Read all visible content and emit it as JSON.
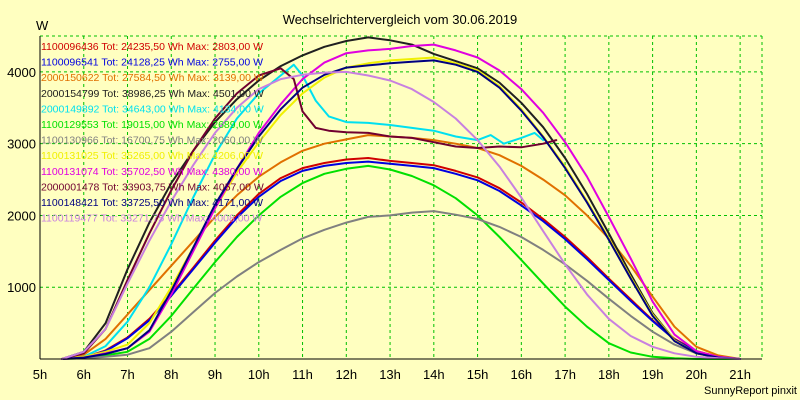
{
  "chart_data": {
    "type": "line",
    "title": "Wechselrichtervergleich vom 30.06.2019",
    "ylabel": "W",
    "xlabel": "",
    "footer": "SunnyReport pinxit",
    "xlim": [
      5,
      21.5
    ],
    "ylim": [
      0,
      4500
    ],
    "grid": true,
    "x_ticks": [
      {
        "value": 5,
        "label": "5h"
      },
      {
        "value": 6,
        "label": "6h"
      },
      {
        "value": 7,
        "label": "7h"
      },
      {
        "value": 8,
        "label": "8h"
      },
      {
        "value": 9,
        "label": "9h"
      },
      {
        "value": 10,
        "label": "10h"
      },
      {
        "value": 11,
        "label": "11h"
      },
      {
        "value": 12,
        "label": "12h"
      },
      {
        "value": 13,
        "label": "13h"
      },
      {
        "value": 14,
        "label": "14h"
      },
      {
        "value": 15,
        "label": "15h"
      },
      {
        "value": 16,
        "label": "16h"
      },
      {
        "value": 17,
        "label": "17h"
      },
      {
        "value": 18,
        "label": "18h"
      },
      {
        "value": 19,
        "label": "19h"
      },
      {
        "value": 20,
        "label": "20h"
      },
      {
        "value": 21,
        "label": "21h"
      }
    ],
    "y_ticks": [
      {
        "value": 1000,
        "label": "1000"
      },
      {
        "value": 2000,
        "label": "2000"
      },
      {
        "value": 3000,
        "label": "3000"
      },
      {
        "value": 4000,
        "label": "4000"
      }
    ],
    "series": [
      {
        "name": "1100096436 Tot: 24235,50 Wh Max: 2803,00 W",
        "color": "#d00000",
        "x": [
          5.5,
          6.0,
          6.5,
          7.0,
          7.5,
          8.0,
          8.5,
          9.0,
          9.5,
          10.0,
          10.5,
          11.0,
          11.5,
          12.0,
          12.5,
          13.0,
          13.5,
          14.0,
          14.5,
          15.0,
          15.5,
          16.0,
          16.5,
          17.0,
          17.5,
          18.0,
          18.5,
          19.0,
          19.5,
          20.0,
          20.5,
          21.0
        ],
        "y": [
          0,
          20,
          120,
          300,
          560,
          900,
          1270,
          1650,
          2000,
          2300,
          2520,
          2660,
          2730,
          2780,
          2800,
          2760,
          2730,
          2700,
          2620,
          2530,
          2380,
          2180,
          1950,
          1700,
          1420,
          1120,
          830,
          540,
          280,
          110,
          30,
          0
        ]
      },
      {
        "name": "1100096541 Tot: 24128,25 Wh Max: 2755,00 W",
        "color": "#0000e0",
        "x": [
          5.5,
          6.0,
          6.5,
          7.0,
          7.5,
          8.0,
          8.5,
          9.0,
          9.5,
          10.0,
          10.5,
          11.0,
          11.5,
          12.0,
          12.5,
          13.0,
          13.5,
          14.0,
          14.5,
          15.0,
          15.5,
          16.0,
          16.5,
          17.0,
          17.5,
          18.0,
          18.5,
          19.0,
          19.5,
          20.0,
          20.5,
          21.0
        ],
        "y": [
          0,
          20,
          110,
          290,
          540,
          880,
          1250,
          1620,
          1970,
          2260,
          2480,
          2620,
          2690,
          2730,
          2750,
          2720,
          2690,
          2660,
          2580,
          2490,
          2340,
          2140,
          1920,
          1670,
          1390,
          1100,
          810,
          530,
          270,
          100,
          30,
          0
        ]
      },
      {
        "name": "2000150622 Tot: 27584,50 Wh Max: 3139,00 W",
        "color": "#e07000",
        "x": [
          5.5,
          6.0,
          6.5,
          7.0,
          7.5,
          8.0,
          8.5,
          9.0,
          9.5,
          10.0,
          10.5,
          11.0,
          11.5,
          12.0,
          12.5,
          13.0,
          13.5,
          14.0,
          14.5,
          15.0,
          15.5,
          16.0,
          16.5,
          17.0,
          17.5,
          18.0,
          18.5,
          19.0,
          19.5,
          20.0,
          20.5,
          21.0
        ],
        "y": [
          0,
          60,
          280,
          620,
          960,
          1300,
          1640,
          1980,
          2280,
          2540,
          2740,
          2900,
          3000,
          3060,
          3120,
          3100,
          3080,
          3050,
          3000,
          2940,
          2840,
          2690,
          2500,
          2280,
          2000,
          1680,
          1300,
          870,
          450,
          170,
          50,
          0
        ]
      },
      {
        "name": "2000154799 Tot: 38986,25 Wh Max: 4501,00 W",
        "color": "#202020",
        "x": [
          5.5,
          6.0,
          6.5,
          7.0,
          7.5,
          8.0,
          8.5,
          9.0,
          9.5,
          10.0,
          10.5,
          11.0,
          11.5,
          12.0,
          12.5,
          13.0,
          13.5,
          14.0,
          14.5,
          15.0,
          15.5,
          16.0,
          16.5,
          17.0,
          17.5,
          18.0,
          18.5,
          19.0,
          19.5,
          20.0,
          20.5,
          21.0
        ],
        "y": [
          0,
          100,
          500,
          1250,
          1900,
          2450,
          2900,
          3300,
          3620,
          3880,
          4080,
          4230,
          4350,
          4430,
          4480,
          4440,
          4380,
          4250,
          4150,
          4050,
          3850,
          3570,
          3230,
          2800,
          2300,
          1750,
          1180,
          640,
          260,
          80,
          20,
          0
        ]
      },
      {
        "name": "2000149892 Tot: 34643,00 Wh Max: 4134,00 W",
        "color": "#00e0f0",
        "x": [
          5.5,
          6.0,
          6.5,
          7.0,
          7.5,
          8.0,
          8.5,
          9.0,
          9.5,
          10.0,
          10.5,
          10.8,
          11.0,
          11.3,
          11.6,
          12.0,
          12.5,
          13.0,
          13.5,
          14.0,
          14.5,
          15.0,
          15.3,
          15.6,
          16.0,
          16.3,
          16.5
        ],
        "y": [
          0,
          30,
          180,
          520,
          1000,
          1600,
          2250,
          2850,
          3350,
          3700,
          3950,
          4100,
          3950,
          3600,
          3380,
          3300,
          3290,
          3260,
          3220,
          3180,
          3100,
          3050,
          3120,
          3000,
          3080,
          3150,
          3050
        ]
      },
      {
        "name": "1100129553 Tot: 19015,00 Wh Max: 2689,00 W",
        "color": "#00e000",
        "x": [
          5.5,
          6.0,
          6.5,
          7.0,
          7.5,
          8.0,
          8.5,
          9.0,
          9.5,
          10.0,
          10.5,
          11.0,
          11.5,
          12.0,
          12.5,
          13.0,
          13.5,
          14.0,
          14.5,
          15.0,
          15.5,
          16.0,
          16.5,
          17.0,
          17.5,
          18.0,
          18.5,
          19.0,
          19.5,
          20.0,
          20.5,
          21.0
        ],
        "y": [
          0,
          10,
          50,
          100,
          280,
          600,
          980,
          1350,
          1700,
          2000,
          2260,
          2450,
          2580,
          2650,
          2690,
          2640,
          2550,
          2420,
          2240,
          2000,
          1700,
          1380,
          1050,
          730,
          450,
          220,
          90,
          30,
          10,
          0,
          0,
          0
        ]
      },
      {
        "name": "1100130966 Tot: 16700,75 Wh Max: 2060,00 W",
        "color": "#808080",
        "x": [
          5.5,
          6.0,
          6.5,
          7.0,
          7.5,
          8.0,
          8.5,
          9.0,
          9.5,
          10.0,
          10.5,
          11.0,
          11.5,
          12.0,
          12.5,
          13.0,
          13.5,
          14.0,
          14.5,
          15.0,
          15.5,
          16.0,
          16.5,
          17.0,
          17.5,
          18.0,
          18.5,
          19.0,
          19.5,
          20.0,
          20.5,
          21.0
        ],
        "y": [
          0,
          10,
          30,
          60,
          150,
          380,
          650,
          920,
          1150,
          1350,
          1520,
          1680,
          1800,
          1900,
          1980,
          2000,
          2040,
          2060,
          2010,
          1950,
          1840,
          1700,
          1520,
          1320,
          1090,
          840,
          600,
          380,
          200,
          80,
          20,
          0
        ]
      },
      {
        "name": "1100131025 Tot: 35265,00 Wh Max: 4206,00 W",
        "color": "#f0f000",
        "x": [
          5.5,
          6.0,
          6.5,
          7.0,
          7.5,
          8.0,
          8.5,
          9.0,
          9.5,
          10.0,
          10.5,
          11.0,
          11.5,
          12.0,
          12.5,
          13.0,
          13.5,
          14.0,
          14.5,
          15.0,
          15.5,
          16.0,
          16.5,
          17.0,
          17.5,
          18.0,
          18.5,
          19.0,
          19.5,
          20.0,
          20.5,
          21.0
        ],
        "y": [
          0,
          30,
          100,
          200,
          500,
          1000,
          1550,
          2100,
          2600,
          3020,
          3400,
          3700,
          3920,
          4060,
          4120,
          4160,
          4180,
          4200,
          4120,
          4020,
          3800,
          3480,
          3100,
          2680,
          2200,
          1680,
          1140,
          620,
          260,
          80,
          20,
          0
        ]
      },
      {
        "name": "1100131074 Tot: 35702,50 Wh Max: 4380,00 W",
        "color": "#e000e0",
        "x": [
          5.5,
          6.0,
          6.5,
          7.0,
          7.5,
          8.0,
          8.5,
          9.0,
          9.5,
          10.0,
          10.5,
          11.0,
          11.5,
          12.0,
          12.5,
          13.0,
          13.5,
          14.0,
          14.5,
          15.0,
          15.5,
          16.0,
          16.5,
          17.0,
          17.5,
          18.0,
          18.5,
          19.0,
          19.5,
          20.0,
          20.5,
          21.0
        ],
        "y": [
          0,
          20,
          80,
          150,
          380,
          900,
          1500,
          2100,
          2650,
          3150,
          3550,
          3900,
          4130,
          4260,
          4300,
          4320,
          4360,
          4380,
          4300,
          4200,
          4020,
          3760,
          3430,
          3020,
          2540,
          1980,
          1400,
          800,
          340,
          110,
          30,
          0
        ]
      },
      {
        "name": "2000001478 Tot: 33903,75 Wh Max: 4057,00 W",
        "color": "#700030",
        "x": [
          5.5,
          6.0,
          6.5,
          7.0,
          7.5,
          8.0,
          8.5,
          9.0,
          9.5,
          10.0,
          10.5,
          10.8,
          11.0,
          11.3,
          11.6,
          12.0,
          12.5,
          13.0,
          13.5,
          14.0,
          14.5,
          15.0,
          15.5,
          16.0,
          16.5,
          16.8
        ],
        "y": [
          0,
          80,
          420,
          1100,
          1750,
          2350,
          2900,
          3350,
          3700,
          3950,
          4050,
          3900,
          3450,
          3220,
          3180,
          3160,
          3150,
          3100,
          3080,
          3020,
          2960,
          2940,
          2960,
          2950,
          3000,
          3050
        ]
      },
      {
        "name": "1100148421 Tot: 33725,50 Wh Max: 4171,00 W",
        "color": "#000080",
        "x": [
          5.5,
          6.0,
          6.5,
          7.0,
          7.5,
          8.0,
          8.5,
          9.0,
          9.5,
          10.0,
          10.5,
          11.0,
          11.5,
          12.0,
          12.5,
          13.0,
          13.5,
          14.0,
          14.5,
          15.0,
          15.5,
          16.0,
          16.5,
          17.0,
          17.5,
          18.0,
          18.5,
          19.0,
          19.5,
          20.0,
          20.5,
          21.0
        ],
        "y": [
          0,
          20,
          70,
          150,
          400,
          950,
          1550,
          2150,
          2650,
          3100,
          3480,
          3780,
          3960,
          4060,
          4090,
          4120,
          4140,
          4160,
          4100,
          4000,
          3780,
          3460,
          3090,
          2660,
          2180,
          1660,
          1120,
          600,
          250,
          80,
          20,
          0
        ]
      },
      {
        "name": "1100119477 Tot: 33271,75 Wh Max: 4008,00 W",
        "color": "#c880e0",
        "x": [
          5.5,
          6.0,
          6.5,
          7.0,
          7.5,
          8.0,
          8.5,
          9.0,
          9.5,
          10.0,
          10.5,
          11.0,
          11.5,
          12.0,
          12.5,
          13.0,
          13.5,
          14.0,
          14.5,
          15.0,
          15.5,
          16.0,
          16.5,
          17.0,
          17.5,
          18.0,
          18.5,
          19.0,
          19.5,
          20.0,
          20.5,
          21.0
        ],
        "y": [
          0,
          100,
          420,
          1050,
          1650,
          2200,
          2700,
          3150,
          3500,
          3760,
          3900,
          3960,
          3990,
          4000,
          3950,
          3880,
          3760,
          3580,
          3350,
          3050,
          2680,
          2250,
          1780,
          1320,
          900,
          560,
          320,
          170,
          80,
          30,
          10,
          0
        ]
      }
    ]
  }
}
